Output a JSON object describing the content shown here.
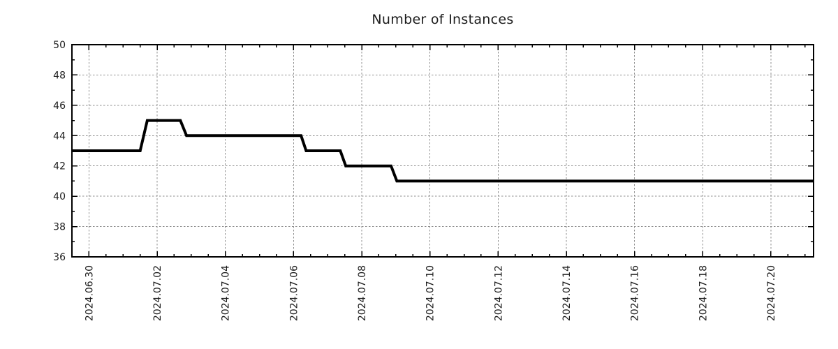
{
  "title": "Number of Instances",
  "colors": {
    "line": "#000000",
    "grid": "#8f8f8f",
    "axis": "#000000",
    "text": "#1c1c1c",
    "background": "#ffffff"
  },
  "chart_data": {
    "type": "line",
    "subtype": "step",
    "title": "Number of Instances",
    "grid": true,
    "legend": "none",
    "x_axis": {
      "start": "2024-06-29 12:00",
      "end": "2024-07-21 06:00",
      "total_days": 21.75,
      "first_major_tick_offset_days": 0.5,
      "major_tick_interval_days": 2,
      "minor_tick_interval_days": 0.5,
      "label_rotation_deg": 90,
      "major_tick_labels": [
        "2024.06.30",
        "2024.07.02",
        "2024.07.04",
        "2024.07.06",
        "2024.07.08",
        "2024.07.10",
        "2024.07.12",
        "2024.07.14",
        "2024.07.16",
        "2024.07.18",
        "2024.07.20"
      ]
    },
    "y_axis": {
      "min": 36,
      "max": 50,
      "major_ticks": [
        36,
        38,
        40,
        42,
        44,
        46,
        48,
        50
      ],
      "minor_tick_interval": 1
    },
    "series": [
      {
        "name": "Number of Instances",
        "color": "#000000",
        "line_width": 4,
        "points_days_value": [
          [
            0.0,
            43
          ],
          [
            2.0,
            43
          ],
          [
            2.21,
            45
          ],
          [
            3.18,
            45
          ],
          [
            3.36,
            44
          ],
          [
            6.72,
            44
          ],
          [
            6.87,
            43
          ],
          [
            7.87,
            43
          ],
          [
            8.03,
            42
          ],
          [
            9.36,
            42
          ],
          [
            9.53,
            41
          ],
          [
            21.75,
            41
          ]
        ]
      }
    ],
    "steps_readable": [
      {
        "value": 43,
        "from": "2024-06-29 12:00 (axis start)",
        "to": "~2024-07-01 12:00"
      },
      {
        "value": 45,
        "from": "~2024-07-01 17:00",
        "to": "~2024-07-02 16:00"
      },
      {
        "value": 44,
        "from": "~2024-07-02 21:00",
        "to": "~2024-07-06 05:00"
      },
      {
        "value": 43,
        "from": "~2024-07-06 09:00",
        "to": "~2024-07-07 09:00"
      },
      {
        "value": 42,
        "from": "~2024-07-07 13:00",
        "to": "~2024-07-08 21:00"
      },
      {
        "value": 41,
        "from": "~2024-07-09 01:00",
        "to": "2024-07-21 06:00 (axis end)"
      }
    ]
  }
}
